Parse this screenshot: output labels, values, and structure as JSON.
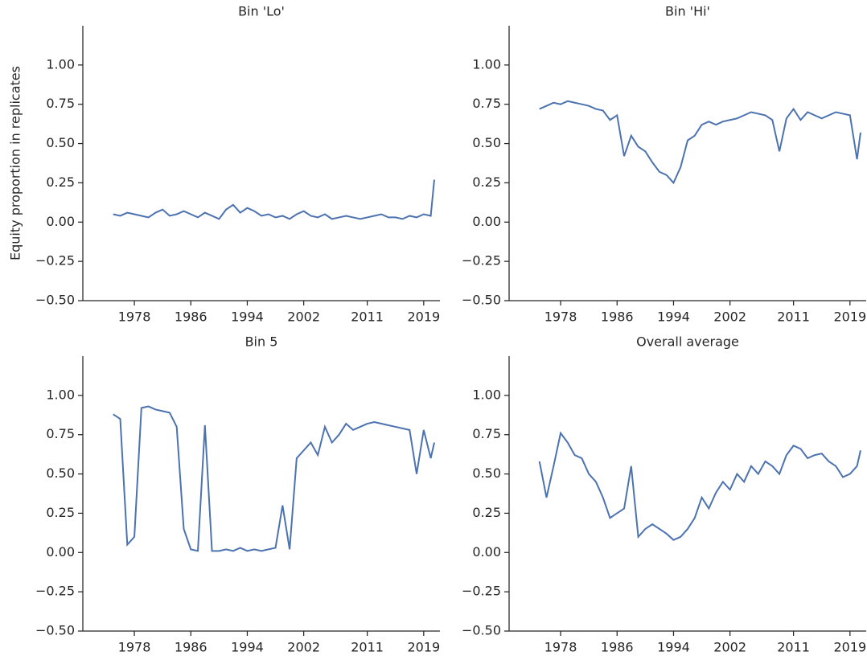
{
  "chart_data": [
    {
      "type": "line",
      "title": "Bin 'Lo'",
      "ylabel": "Equity proportion in replicates",
      "color": "#4c72b0",
      "x": [
        1975,
        1976,
        1977,
        1978,
        1979,
        1980,
        1981,
        1982,
        1983,
        1984,
        1985,
        1986,
        1987,
        1988,
        1989,
        1990,
        1991,
        1992,
        1993,
        1994,
        1995,
        1996,
        1997,
        1998,
        1999,
        2000,
        2001,
        2002,
        2003,
        2004,
        2005,
        2006,
        2007,
        2008,
        2009,
        2010,
        2011,
        2012,
        2013,
        2014,
        2015,
        2016,
        2017,
        2018,
        2019,
        2020,
        2020.5
      ],
      "values": [
        0.05,
        0.04,
        0.06,
        0.05,
        0.04,
        0.03,
        0.06,
        0.08,
        0.04,
        0.05,
        0.07,
        0.05,
        0.03,
        0.06,
        0.04,
        0.02,
        0.08,
        0.11,
        0.06,
        0.09,
        0.07,
        0.04,
        0.05,
        0.03,
        0.04,
        0.02,
        0.05,
        0.07,
        0.04,
        0.03,
        0.05,
        0.02,
        0.03,
        0.04,
        0.03,
        0.02,
        0.03,
        0.04,
        0.05,
        0.03,
        0.03,
        0.02,
        0.04,
        0.03,
        0.05,
        0.04,
        0.27
      ],
      "xlim": [
        1970.7,
        2021.3
      ],
      "xticks": [
        1978,
        1986,
        1994,
        2002,
        2011,
        2019
      ],
      "ylim": [
        -0.5,
        1.25
      ],
      "yticks": [
        {
          "value": -0.5,
          "label": "−0.50"
        },
        {
          "value": -0.25,
          "label": "−0.25"
        },
        {
          "value": 0,
          "label": "0.00"
        },
        {
          "value": 0.25,
          "label": "0.25"
        },
        {
          "value": 0.5,
          "label": "0.50"
        },
        {
          "value": 0.75,
          "label": "0.75"
        },
        {
          "value": 1,
          "label": "1.00"
        }
      ]
    },
    {
      "type": "line",
      "title": "Bin 'Hi'",
      "color": "#4c72b0",
      "x": [
        1975,
        1976,
        1977,
        1978,
        1979,
        1980,
        1981,
        1982,
        1983,
        1984,
        1985,
        1986,
        1987,
        1988,
        1989,
        1990,
        1991,
        1992,
        1993,
        1994,
        1995,
        1996,
        1997,
        1998,
        1999,
        2000,
        2001,
        2002,
        2003,
        2004,
        2005,
        2006,
        2007,
        2008,
        2009,
        2010,
        2011,
        2012,
        2013,
        2014,
        2015,
        2016,
        2017,
        2018,
        2019,
        2020,
        2020.5
      ],
      "values": [
        0.72,
        0.74,
        0.76,
        0.75,
        0.77,
        0.76,
        0.75,
        0.74,
        0.72,
        0.71,
        0.65,
        0.68,
        0.42,
        0.55,
        0.48,
        0.45,
        0.38,
        0.32,
        0.3,
        0.25,
        0.35,
        0.52,
        0.55,
        0.62,
        0.64,
        0.62,
        0.64,
        0.65,
        0.66,
        0.68,
        0.7,
        0.69,
        0.68,
        0.65,
        0.45,
        0.66,
        0.72,
        0.65,
        0.7,
        0.68,
        0.66,
        0.68,
        0.7,
        0.69,
        0.68,
        0.4,
        0.57
      ],
      "xlim": [
        1970.7,
        2021.3
      ],
      "xticks": [
        1978,
        1986,
        1994,
        2002,
        2011,
        2019
      ],
      "ylim": [
        -0.5,
        1.25
      ],
      "yticks": [
        {
          "value": -0.5,
          "label": "−0.50"
        },
        {
          "value": -0.25,
          "label": "−0.25"
        },
        {
          "value": 0,
          "label": "0.00"
        },
        {
          "value": 0.25,
          "label": "0.25"
        },
        {
          "value": 0.5,
          "label": "0.50"
        },
        {
          "value": 0.75,
          "label": "0.75"
        },
        {
          "value": 1,
          "label": "1.00"
        }
      ]
    },
    {
      "type": "line",
      "title": "Bin 5",
      "color": "#4c72b0",
      "x": [
        1975,
        1976,
        1977,
        1978,
        1979,
        1980,
        1981,
        1982,
        1983,
        1984,
        1985,
        1986,
        1987,
        1988,
        1989,
        1990,
        1991,
        1992,
        1993,
        1994,
        1995,
        1996,
        1997,
        1998,
        1999,
        2000,
        2001,
        2002,
        2003,
        2004,
        2005,
        2006,
        2007,
        2008,
        2009,
        2010,
        2011,
        2012,
        2013,
        2014,
        2015,
        2016,
        2017,
        2018,
        2019,
        2020,
        2020.5
      ],
      "values": [
        0.88,
        0.85,
        0.05,
        0.1,
        0.92,
        0.93,
        0.91,
        0.9,
        0.89,
        0.8,
        0.15,
        0.02,
        0.01,
        0.81,
        0.01,
        0.01,
        0.02,
        0.01,
        0.03,
        0.01,
        0.02,
        0.01,
        0.02,
        0.03,
        0.3,
        0.02,
        0.6,
        0.65,
        0.7,
        0.62,
        0.8,
        0.7,
        0.75,
        0.82,
        0.78,
        0.8,
        0.82,
        0.83,
        0.82,
        0.81,
        0.8,
        0.79,
        0.78,
        0.5,
        0.78,
        0.6,
        0.7
      ],
      "xlim": [
        1970.7,
        2021.3
      ],
      "xticks": [
        1978,
        1986,
        1994,
        2002,
        2011,
        2019
      ],
      "ylim": [
        -0.5,
        1.25
      ],
      "yticks": [
        {
          "value": -0.5,
          "label": "−0.50"
        },
        {
          "value": -0.25,
          "label": "−0.25"
        },
        {
          "value": 0,
          "label": "0.00"
        },
        {
          "value": 0.25,
          "label": "0.25"
        },
        {
          "value": 0.5,
          "label": "0.50"
        },
        {
          "value": 0.75,
          "label": "0.75"
        },
        {
          "value": 1,
          "label": "1.00"
        }
      ]
    },
    {
      "type": "line",
      "title": "Overall average",
      "color": "#4c72b0",
      "x": [
        1975,
        1976,
        1977,
        1978,
        1979,
        1980,
        1981,
        1982,
        1983,
        1984,
        1985,
        1986,
        1987,
        1988,
        1989,
        1990,
        1991,
        1992,
        1993,
        1994,
        1995,
        1996,
        1997,
        1998,
        1999,
        2000,
        2001,
        2002,
        2003,
        2004,
        2005,
        2006,
        2007,
        2008,
        2009,
        2010,
        2011,
        2012,
        2013,
        2014,
        2015,
        2016,
        2017,
        2018,
        2019,
        2020,
        2020.5
      ],
      "values": [
        0.58,
        0.35,
        0.55,
        0.76,
        0.7,
        0.62,
        0.6,
        0.5,
        0.45,
        0.35,
        0.22,
        0.25,
        0.28,
        0.55,
        0.1,
        0.15,
        0.18,
        0.15,
        0.12,
        0.08,
        0.1,
        0.15,
        0.22,
        0.35,
        0.28,
        0.38,
        0.45,
        0.4,
        0.5,
        0.45,
        0.55,
        0.5,
        0.58,
        0.55,
        0.5,
        0.62,
        0.68,
        0.66,
        0.6,
        0.62,
        0.63,
        0.58,
        0.55,
        0.48,
        0.5,
        0.55,
        0.65
      ],
      "xlim": [
        1970.7,
        2021.3
      ],
      "xticks": [
        1978,
        1986,
        1994,
        2002,
        2011,
        2019
      ],
      "ylim": [
        -0.5,
        1.25
      ],
      "yticks": [
        {
          "value": -0.5,
          "label": "−0.50"
        },
        {
          "value": -0.25,
          "label": "−0.25"
        },
        {
          "value": 0,
          "label": "0.00"
        },
        {
          "value": 0.25,
          "label": "0.25"
        },
        {
          "value": 0.5,
          "label": "0.50"
        },
        {
          "value": 0.75,
          "label": "0.75"
        },
        {
          "value": 1,
          "label": "1.00"
        }
      ]
    }
  ]
}
